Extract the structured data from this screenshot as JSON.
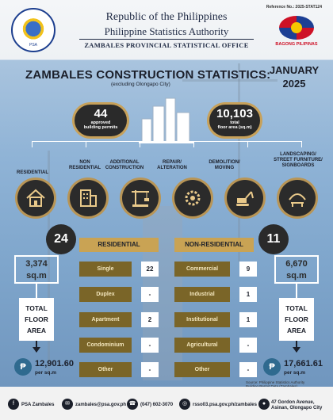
{
  "header": {
    "reference": "Reference No.: 2025-STAT124",
    "line1": "Republic of the Philippines",
    "line2": "Philippine Statistics Authority",
    "office": "ZAMBALES PROVINCIAL STATISTICAL OFFICE",
    "bagong_pilipinas": "BAGONG PILIPINAS"
  },
  "title": {
    "main": "ZAMBALES CONSTRUCTION STATISTICS:",
    "sub": "(excluding Olongapo City)",
    "month": "JANUARY",
    "year": "2025"
  },
  "permits": {
    "value": "44",
    "label1": "approved",
    "label2": "building permits"
  },
  "floor": {
    "value": "10,103",
    "label1": "total",
    "label2": "floor area (sq.m)"
  },
  "categories": {
    "c1": "RESIDENTIAL",
    "c2a": "NON",
    "c2b": "RESIDENTIAL",
    "c3a": "ADDITIONAL",
    "c3b": "CONSTRUCTION",
    "c4a": "REPAIR/",
    "c4b": "ALTERATION",
    "c5a": "DEMOLITION/",
    "c5b": "MOVING",
    "c6a": "LANDSCAPING/",
    "c6b": "STREET FURNITURE/",
    "c6c": "SIGNBOARDS"
  },
  "residential": {
    "count": "24",
    "header": "RESIDENTIAL",
    "area_value": "3,374",
    "area_unit": "sq.m",
    "tfa1": "TOTAL",
    "tfa2": "FLOOR",
    "tfa3": "AREA",
    "cost": "12,901.60",
    "cost_unit": "per sq.m",
    "rows": [
      {
        "label": "Single",
        "value": "22"
      },
      {
        "label": "Duplex",
        "value": "-"
      },
      {
        "label": "Apartment",
        "value": "2"
      },
      {
        "label": "Condominium",
        "value": "-"
      },
      {
        "label": "Other",
        "value": "-"
      }
    ]
  },
  "nonresidential": {
    "count": "11",
    "header": "NON-RESIDENTIAL",
    "area_value": "6,670",
    "area_unit": "sq.m",
    "tfa1": "TOTAL",
    "tfa2": "FLOOR",
    "tfa3": "AREA",
    "cost": "17,661.61",
    "cost_unit": "per sq.m",
    "rows": [
      {
        "label": "Commercial",
        "value": "9"
      },
      {
        "label": "Industrial",
        "value": "1"
      },
      {
        "label": "Institutional",
        "value": "1"
      },
      {
        "label": "Agricultural",
        "value": "-"
      },
      {
        "label": "Other",
        "value": "-"
      }
    ]
  },
  "source": "Source: Philippine Statistics Authority\nBuilding Permit Data (Zambales)",
  "footer": {
    "facebook": "PSA Zambales",
    "email": "zambales@psa.gov.ph",
    "phone": "(047) 602-3070",
    "website": "rsso03.psa.gov.ph/zambales",
    "address": "47 Gordon Avenue, Asinan, Olongapo City"
  },
  "colors": {
    "gold": "#c9a354",
    "dark_gold": "#7a6528",
    "dark": "#2a2a2a"
  }
}
